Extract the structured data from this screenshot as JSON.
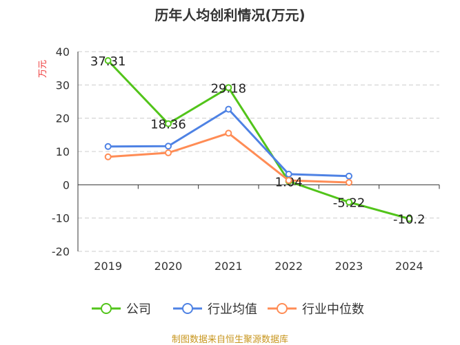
{
  "chart_data": {
    "type": "line",
    "title": "历年人均创利情况(万元)",
    "ylabel": "万元",
    "categories": [
      "2019",
      "2020",
      "2021",
      "2022",
      "2023",
      "2024"
    ],
    "ylim": [
      -20,
      40
    ],
    "yticks": [
      -20,
      -10,
      0,
      10,
      20,
      30,
      40
    ],
    "grid": true,
    "legend_position": "bottom",
    "series": [
      {
        "name": "公司",
        "color": "#52c41a",
        "values": [
          37.31,
          18.36,
          29.18,
          1.04,
          -5.22,
          -10.2
        ],
        "labels": [
          "37.31",
          "18.36",
          "29.18",
          "1.04",
          "-5.22",
          "-10.2"
        ]
      },
      {
        "name": "行业均值",
        "color": "#4e82e4",
        "values": [
          11.5,
          11.6,
          22.7,
          3.2,
          2.6,
          null
        ]
      },
      {
        "name": "行业中位数",
        "color": "#ff8c55",
        "values": [
          8.4,
          9.6,
          15.5,
          1.3,
          0.7,
          null
        ]
      }
    ]
  },
  "source": "制图数据来自恒生聚源数据库"
}
